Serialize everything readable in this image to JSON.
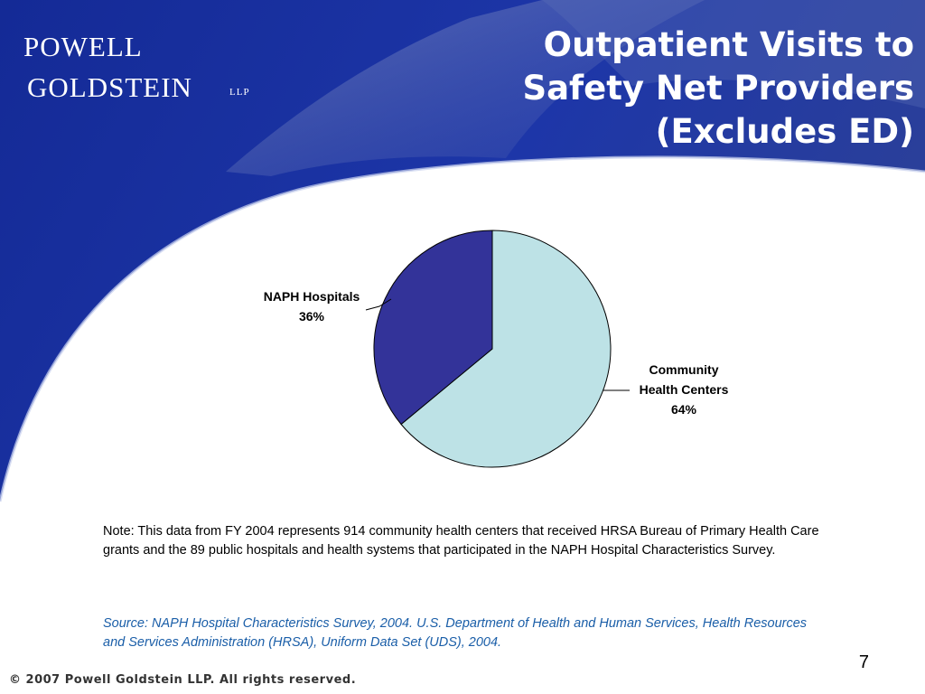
{
  "logo": {
    "line1": "POWELL",
    "line2": "GOLDSTEIN",
    "suffix": "LLP"
  },
  "slide": {
    "title_lines": [
      "Outpatient Visits to",
      "Safety Net Providers",
      "(Excludes ED)"
    ],
    "note": "Note: This data from FY 2004 represents 914 community health centers that received HRSA Bureau of Primary Health Care grants and the 89 public hospitals and health systems that participated in the NAPH Hospital Characteristics Survey.",
    "source": "Source: NAPH Hospital Characteristics Survey, 2004. U.S. Department of Health and Human Services, Health Resources and Services Administration (HRSA), Uniform Data Set (UDS), 2004.",
    "page_number": "7",
    "copyright": "© 2007 Powell Goldstein LLP. All rights reserved."
  },
  "colors": {
    "banner_blue": "#1a2f9e",
    "naph_slice": "#333399",
    "chc_slice": "#bde2e6",
    "source_text": "#1a5ea8"
  },
  "chart_data": {
    "type": "pie",
    "title": "",
    "slices": [
      {
        "label_lines": [
          "Community",
          "Health Centers"
        ],
        "value": 64,
        "value_label": "64%",
        "color": "#bde2e6"
      },
      {
        "label_lines": [
          "NAPH Hospitals"
        ],
        "value": 36,
        "value_label": "36%",
        "color": "#333399"
      }
    ],
    "start_angle": "12 o'clock",
    "direction": "clockwise",
    "legend": "none"
  }
}
